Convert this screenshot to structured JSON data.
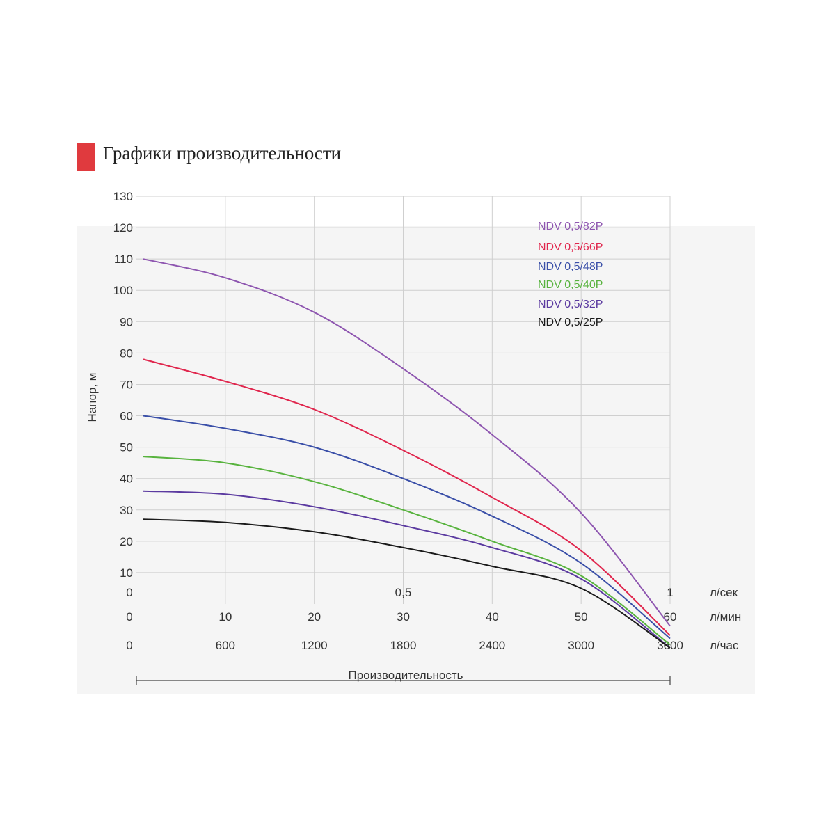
{
  "header": {
    "title": "Графики производительности",
    "marker_color": "#e03a3e"
  },
  "chart_data": {
    "type": "line",
    "title": "Графики производительности",
    "ylabel": "Напор, м",
    "xlabel": "Производительность",
    "ylim": [
      0,
      130
    ],
    "xlim": [
      0,
      60
    ],
    "y_ticks": [
      "130",
      "120",
      "110",
      "100",
      "90",
      "80",
      "70",
      "60",
      "50",
      "40",
      "30",
      "20",
      "10"
    ],
    "x_axes": [
      {
        "unit": "л/сек",
        "ticks": [
          {
            "x": 0,
            "label": "0"
          },
          {
            "x": 30,
            "label": "0,5"
          },
          {
            "x": 60,
            "label": "1"
          }
        ]
      },
      {
        "unit": "л/мин",
        "ticks": [
          {
            "x": 0,
            "label": "0"
          },
          {
            "x": 10,
            "label": "10"
          },
          {
            "x": 20,
            "label": "20"
          },
          {
            "x": 30,
            "label": "30"
          },
          {
            "x": 40,
            "label": "40"
          },
          {
            "x": 50,
            "label": "50"
          },
          {
            "x": 60,
            "label": "60"
          }
        ]
      },
      {
        "unit": "л/час",
        "ticks": [
          {
            "x": 0,
            "label": "0"
          },
          {
            "x": 10,
            "label": "600"
          },
          {
            "x": 20,
            "label": "1200"
          },
          {
            "x": 30,
            "label": "1800"
          },
          {
            "x": 40,
            "label": "2400"
          },
          {
            "x": 50,
            "label": "3000"
          },
          {
            "x": 60,
            "label": "3600"
          }
        ]
      }
    ],
    "grid": true,
    "legend_position": "top-right",
    "x": [
      0,
      10,
      20,
      30,
      40,
      50,
      60
    ],
    "series": [
      {
        "name": "NDV 0,5/82P",
        "color": "#8e56b0",
        "values": [
          110,
          104,
          93,
          75,
          54,
          29,
          -7
        ]
      },
      {
        "name": "NDV 0,5/66P",
        "color": "#e0264d",
        "values": [
          78,
          71,
          62,
          49,
          34,
          17,
          -10
        ]
      },
      {
        "name": "NDV 0,5/48P",
        "color": "#3a4fa8",
        "values": [
          60,
          56,
          50,
          40,
          28,
          13,
          -11
        ]
      },
      {
        "name": "NDV 0,5/40P",
        "color": "#58b33e",
        "values": [
          47,
          45,
          39,
          30,
          20,
          9,
          -13
        ]
      },
      {
        "name": "NDV 0,5/32P",
        "color": "#5b3aa0",
        "values": [
          36,
          35,
          31,
          25,
          18,
          8,
          -14
        ]
      },
      {
        "name": "NDV 0,5/25P",
        "color": "#1a1a1a",
        "values": [
          27,
          26,
          23,
          18,
          12,
          5,
          -14
        ]
      }
    ]
  }
}
